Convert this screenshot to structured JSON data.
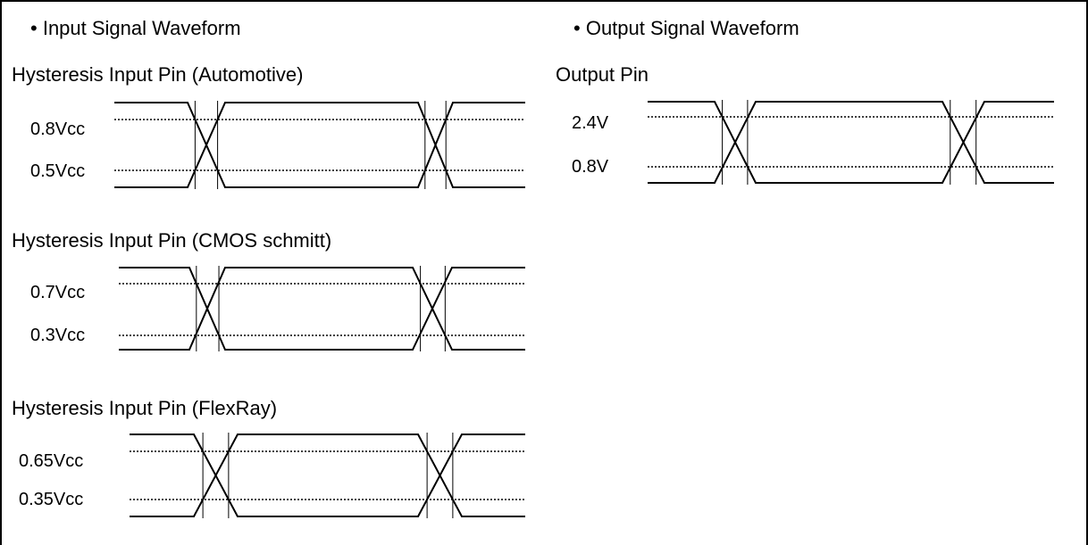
{
  "input_section": {
    "title": "Input Signal Waveform",
    "waveforms": [
      {
        "label": "Hysteresis Input Pin (Automotive)",
        "high_level": "0.8Vcc",
        "low_level": "0.5Vcc"
      },
      {
        "label": "Hysteresis Input Pin (CMOS schmitt)",
        "high_level": "0.7Vcc",
        "low_level": "0.3Vcc"
      },
      {
        "label": "Hysteresis Input Pin (FlexRay)",
        "high_level": "0.65Vcc",
        "low_level": "0.35Vcc"
      }
    ]
  },
  "output_section": {
    "title": "Output Signal Waveform",
    "waveforms": [
      {
        "label": "Output Pin",
        "high_level": "2.4V",
        "low_level": "0.8V"
      }
    ]
  }
}
